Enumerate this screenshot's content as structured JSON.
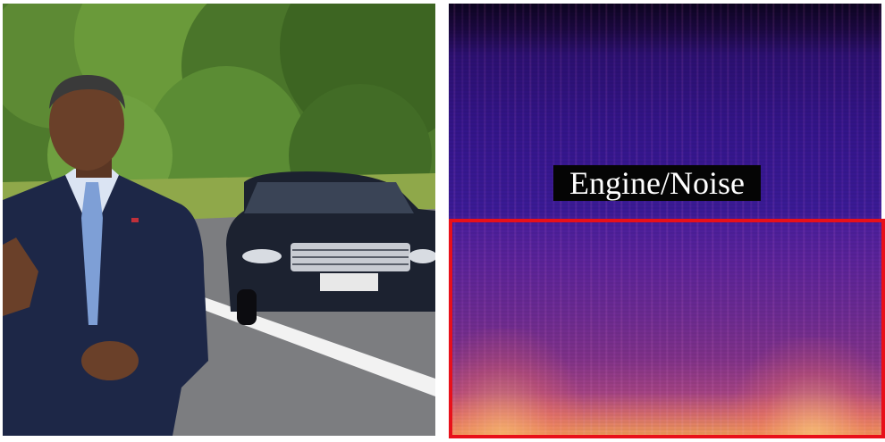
{
  "overlay": {
    "label": "Engine/Noise"
  },
  "colors": {
    "highlight_border": "#e8101a",
    "label_background": "#050505",
    "label_text": "#ffffff"
  },
  "photo": {
    "car_plate": "",
    "scene": "man-beside-car-on-road"
  }
}
